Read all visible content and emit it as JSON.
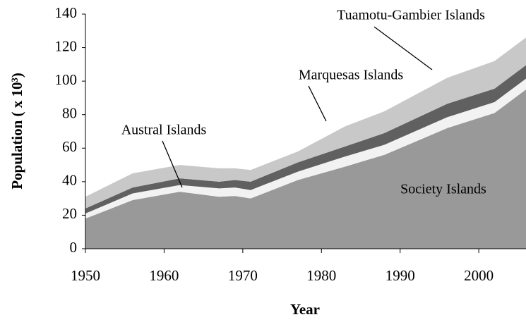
{
  "chart_data": {
    "type": "stacked_area",
    "x_label": "Year",
    "y_label": "Population ( x 10³)",
    "x": [
      1950,
      1956,
      1962,
      1967,
      1969,
      1971,
      1977,
      1983,
      1988,
      1996,
      2002,
      2006
    ],
    "series": [
      {
        "name": "Society Islands",
        "color": "#999999",
        "values": [
          18,
          29,
          34,
          31,
          31.5,
          30,
          41,
          49,
          56,
          72,
          81,
          95
        ]
      },
      {
        "name": "Austral Islands",
        "color": "#f2f2f2",
        "values": [
          3,
          4,
          4,
          5,
          5,
          5,
          5,
          6,
          6,
          6.5,
          6.5,
          6.5
        ]
      },
      {
        "name": "Marquesas Islands",
        "color": "#606060",
        "values": [
          3,
          3.5,
          4,
          4,
          4.5,
          5,
          5.5,
          6,
          7,
          8,
          8,
          8
        ]
      },
      {
        "name": "Tuamotu-Gambier Islands",
        "color": "#c8c8c8",
        "values": [
          7,
          8.5,
          8,
          8,
          7,
          7,
          6.5,
          12,
          13,
          15.5,
          16.5,
          16.5
        ]
      }
    ],
    "xlim": [
      1950,
      2006
    ],
    "xticks": [
      1950,
      1960,
      1970,
      1980,
      1990,
      2000
    ],
    "ylim": [
      0,
      140
    ],
    "yticks": [
      0,
      20,
      40,
      60,
      80,
      100,
      120,
      140
    ]
  }
}
